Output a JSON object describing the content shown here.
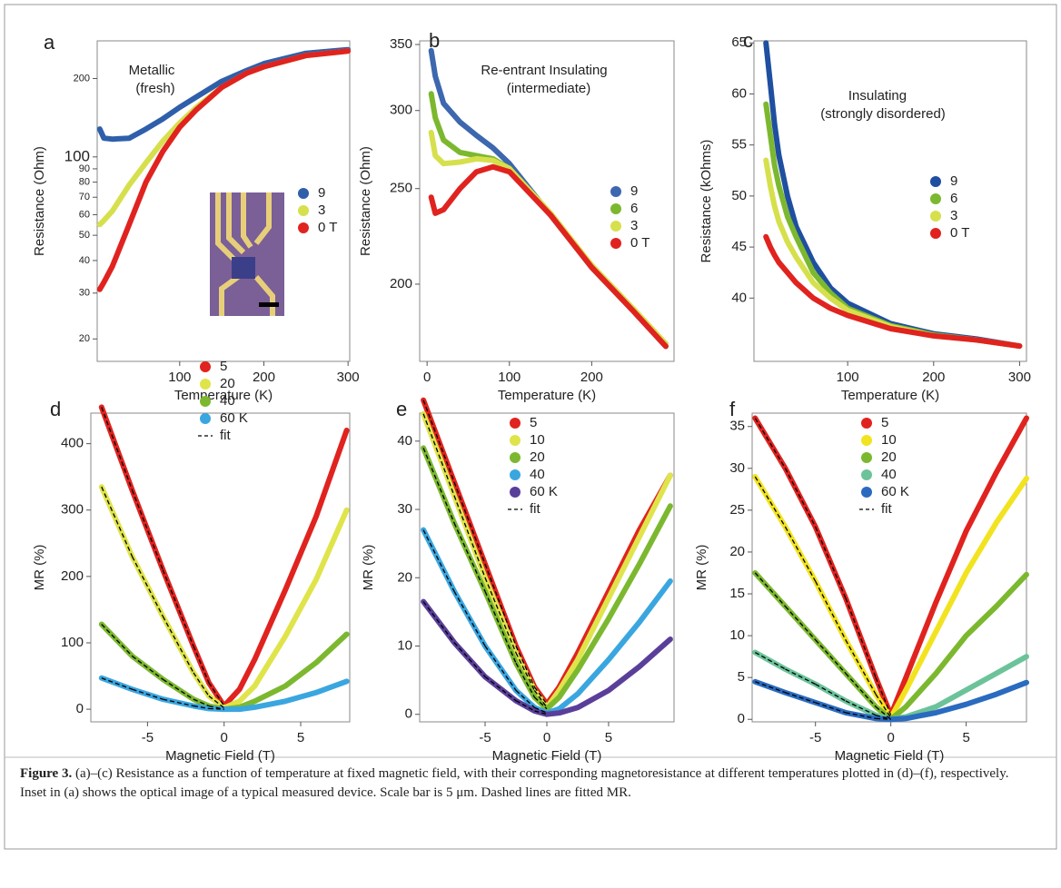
{
  "chart_data": [
    {
      "type": "line",
      "panel": "a",
      "annotations": [
        "Metallic",
        "(fresh)"
      ],
      "x_label": "Temperature (K)",
      "y_label": "Resistance (Ohm)",
      "log_y": true,
      "xlim": [
        2,
        302
      ],
      "ylim": [
        16.4,
        279
      ],
      "xticks": [
        100,
        200,
        300
      ],
      "yticks": [
        20,
        30,
        40,
        50,
        60,
        70,
        80,
        90,
        100,
        200
      ],
      "x": [
        5,
        10,
        20,
        40,
        60,
        80,
        100,
        120,
        150,
        180,
        200,
        250,
        300
      ],
      "series": [
        {
          "name": "9",
          "color": "#2f5faa",
          "values": [
            128,
            118,
            117,
            118,
            128,
            140,
            155,
            170,
            195,
            215,
            228,
            250,
            258
          ]
        },
        {
          "name": "3",
          "color": "#d6e04c",
          "values": [
            55,
            57,
            62,
            78,
            95,
            115,
            135,
            155,
            185,
            210,
            222,
            245,
            255
          ]
        },
        {
          "name": "0 T",
          "color": "#e0231f",
          "values": [
            31,
            33,
            38,
            55,
            80,
            105,
            130,
            152,
            185,
            210,
            222,
            245,
            255
          ]
        }
      ]
    },
    {
      "type": "line",
      "panel": "b",
      "annotations": [
        "Re-entrant Insulating",
        "(intermediate)"
      ],
      "x_label": "Temperature (K)",
      "y_label": "Resistance (Ohm)",
      "log_y": true,
      "xlim": [
        -9,
        300
      ],
      "ylim": [
        167,
        353
      ],
      "xticks": [
        0,
        100,
        200
      ],
      "yticks": [
        200,
        250,
        300,
        350
      ],
      "x": [
        5,
        10,
        20,
        40,
        60,
        80,
        100,
        150,
        200,
        250,
        290
      ],
      "series": [
        {
          "name": "9",
          "color": "#3d67ae",
          "values": [
            345,
            325,
            305,
            292,
            283,
            275,
            265,
            235,
            208,
            188,
            173
          ]
        },
        {
          "name": "6",
          "color": "#7cb82f",
          "values": [
            312,
            295,
            280,
            272,
            270,
            268,
            262,
            235,
            208,
            188,
            174
          ]
        },
        {
          "name": "3",
          "color": "#d6e04c",
          "values": [
            285,
            270,
            265,
            266,
            268,
            267,
            262,
            236,
            209,
            189,
            174
          ]
        },
        {
          "name": "0 T",
          "color": "#e0231f",
          "values": [
            245,
            236,
            238,
            250,
            260,
            263,
            260,
            235,
            208,
            188,
            173
          ]
        }
      ]
    },
    {
      "type": "line",
      "panel": "c",
      "annotations": [
        "Insulating",
        "(strongly disordered)"
      ],
      "x_label": "Temperature (K)",
      "y_label": "Resistance (kOhms)",
      "xlim": [
        -9,
        308
      ],
      "ylim": [
        33.8,
        65.2
      ],
      "xticks": [
        100,
        200,
        300
      ],
      "yticks": [
        40,
        45,
        50,
        55,
        60,
        65
      ],
      "x": [
        5,
        10,
        15,
        20,
        30,
        40,
        60,
        80,
        100,
        150,
        200,
        250,
        300
      ],
      "series": [
        {
          "name": "9",
          "color": "#1f4fa0",
          "values": [
            65,
            61,
            57,
            54,
            50,
            47,
            43.5,
            41,
            39.5,
            37.5,
            36.5,
            36,
            35.3
          ]
        },
        {
          "name": "6",
          "color": "#7cb82f",
          "values": [
            59,
            56,
            53,
            51,
            48,
            46,
            42.5,
            40.5,
            39,
            37.3,
            36.4,
            35.9,
            35.3
          ]
        },
        {
          "name": "3",
          "color": "#d6e04c",
          "values": [
            53.5,
            51,
            49,
            47.5,
            45.5,
            44,
            41.5,
            40,
            38.8,
            37.2,
            36.3,
            35.9,
            35.3
          ]
        },
        {
          "name": "0 T",
          "color": "#e0231f",
          "values": [
            46,
            45,
            44.2,
            43.5,
            42.5,
            41.5,
            40,
            39,
            38.3,
            37,
            36.3,
            35.9,
            35.3
          ]
        }
      ]
    },
    {
      "type": "line",
      "panel": "d",
      "x_label": "Magnetic Field (T)",
      "y_label": "MR (%)",
      "fit_label": "fit",
      "xlim": [
        -8.7,
        8.2
      ],
      "ylim": [
        -19,
        446
      ],
      "xticks": [
        -5,
        0,
        5
      ],
      "yticks": [
        0,
        100,
        200,
        300,
        400
      ],
      "x": [
        -8,
        -6,
        -4,
        -2,
        -1,
        0,
        1,
        2,
        4,
        6,
        8
      ],
      "series": [
        {
          "name": "5",
          "color": "#e0231f",
          "values": [
            455,
            330,
            210,
            95,
            40,
            5,
            30,
            75,
            180,
            290,
            420
          ]
        },
        {
          "name": "20",
          "color": "#dfe44a",
          "values": [
            335,
            230,
            140,
            55,
            20,
            2,
            12,
            35,
            110,
            195,
            300
          ]
        },
        {
          "name": "40",
          "color": "#7cb82f",
          "values": [
            128,
            80,
            45,
            15,
            5,
            0,
            3,
            12,
            35,
            70,
            113
          ]
        },
        {
          "name": "60 K",
          "color": "#3aa6e0",
          "values": [
            47,
            30,
            15,
            5,
            1,
            0,
            0,
            3,
            12,
            25,
            42
          ]
        }
      ]
    },
    {
      "type": "line",
      "panel": "e",
      "x_label": "Magnetic Field (T)",
      "y_label": "MR (%)",
      "fit_label": "fit",
      "xlim": [
        -10.3,
        10.3
      ],
      "ylim": [
        -1.1,
        44.1
      ],
      "xticks": [
        -5,
        0,
        5
      ],
      "yticks": [
        0,
        10,
        20,
        30,
        40
      ],
      "x": [
        -10,
        -7.5,
        -5,
        -2.5,
        -1,
        0,
        1,
        2.5,
        5,
        7.5,
        10
      ],
      "series": [
        {
          "name": "5",
          "color": "#e0231f",
          "values": [
            46,
            34,
            22,
            10,
            4,
            1.5,
            4,
            9,
            18,
            27,
            35
          ]
        },
        {
          "name": "10",
          "color": "#dfe44a",
          "values": [
            44,
            32,
            20,
            9,
            3.5,
            1,
            3.5,
            8,
            17,
            26,
            35
          ]
        },
        {
          "name": "20",
          "color": "#7cb82f",
          "values": [
            39,
            28,
            18,
            7.5,
            2.5,
            0.8,
            2.5,
            6.5,
            14,
            22,
            30.5
          ]
        },
        {
          "name": "40",
          "color": "#3aa6e0",
          "values": [
            27,
            18,
            10,
            3.5,
            1,
            0.2,
            0.8,
            3,
            8,
            13.5,
            19.5
          ]
        },
        {
          "name": "60 K",
          "color": "#5a3f9a",
          "values": [
            16.5,
            10.5,
            5.5,
            2,
            0.5,
            0,
            0.2,
            1,
            3.5,
            7,
            11
          ]
        }
      ]
    },
    {
      "type": "line",
      "panel": "f",
      "x_label": "Magnetic Field (T)",
      "y_label": "MR (%)",
      "fit_label": "fit",
      "xlim": [
        -9.2,
        9.0
      ],
      "ylim": [
        -0.3,
        36.6
      ],
      "xticks": [
        -5,
        0,
        5
      ],
      "yticks": [
        0,
        5,
        10,
        15,
        20,
        25,
        30,
        35
      ],
      "x": [
        -9,
        -7,
        -5,
        -3,
        -1,
        0,
        1,
        3,
        5,
        7,
        9
      ],
      "series": [
        {
          "name": "5",
          "color": "#e0231f",
          "values": [
            36,
            30,
            23,
            14.5,
            5,
            0.5,
            5,
            14,
            22.5,
            29.5,
            36
          ]
        },
        {
          "name": "10",
          "color": "#f2e320",
          "values": [
            29,
            23,
            16.5,
            9.5,
            3,
            0.2,
            3.5,
            10.5,
            17.5,
            23.5,
            28.8
          ]
        },
        {
          "name": "20",
          "color": "#7cb82f",
          "values": [
            17.5,
            13.5,
            9.5,
            5.5,
            1.5,
            0,
            1.5,
            5.5,
            10,
            13.5,
            17.3
          ]
        },
        {
          "name": "40",
          "color": "#6cc39a",
          "values": [
            8,
            6,
            4.2,
            2.2,
            0.5,
            0,
            0.3,
            1.5,
            3.5,
            5.5,
            7.5
          ]
        },
        {
          "name": "60 K",
          "color": "#2a6bc0",
          "values": [
            4.5,
            3.2,
            2,
            0.8,
            0.1,
            0,
            0.1,
            0.8,
            1.8,
            3,
            4.4
          ]
        }
      ]
    }
  ],
  "caption": {
    "label": "Figure 3.",
    "text": "(a)–(c) Resistance as a function of temperature at fixed magnetic field, with their corresponding magnetoresistance at different temperatures plotted in (d)–(f), respectively. Inset in (a) shows the optical image of a typical measured device. Scale bar is 5 μm. Dashed lines are fitted MR."
  }
}
